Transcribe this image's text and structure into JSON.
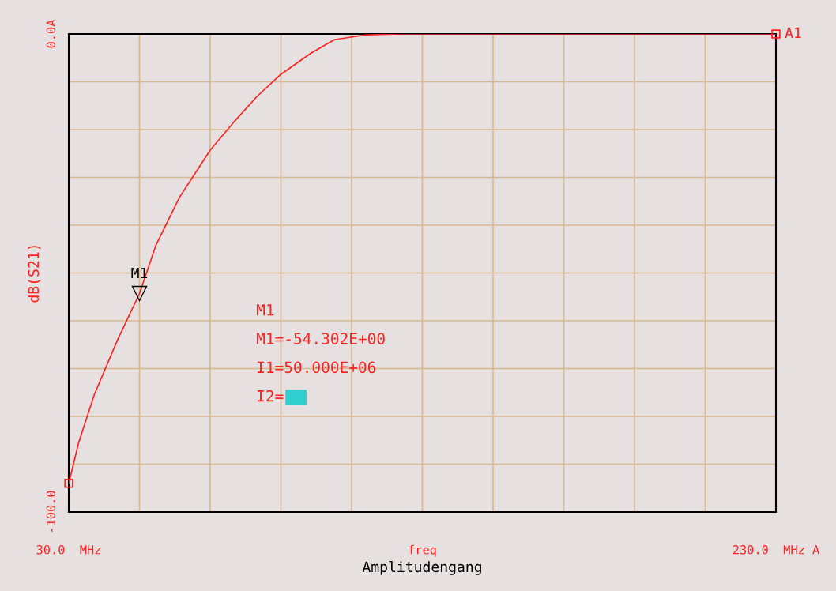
{
  "chart_data": {
    "type": "line",
    "xlabel": "Amplitudengang",
    "ylabel": "dB(S21)",
    "series": [
      {
        "color": "#ff2020",
        "x": [
          30,
          32.8,
          37.2,
          43.8,
          50,
          54.7,
          61.3,
          70,
          76.6,
          83.2,
          89.7,
          98.5,
          105.1,
          113.8,
          123.7,
          230
        ],
        "values": [
          -94,
          -85.5,
          -75.5,
          -64,
          -54.3,
          -44.1,
          -34.2,
          -24.3,
          -18.5,
          -13.1,
          -8.6,
          -4,
          -1.2,
          -0.2,
          0,
          0
        ]
      },
      {
        "type": "scatter",
        "color": "#ff2020",
        "marker": "square",
        "x": [
          30,
          230
        ],
        "values": [
          -94,
          0
        ]
      }
    ],
    "xlim": [
      30,
      230
    ],
    "ylim": [
      -100,
      0
    ],
    "xticks": [
      {
        "value": 30,
        "label": "30.0  MHz"
      },
      {
        "value": 50,
        "label": null
      },
      {
        "value": 70,
        "label": null
      },
      {
        "value": 90,
        "label": null
      },
      {
        "value": 110,
        "label": null
      },
      {
        "value": 130,
        "label": "freq"
      },
      {
        "value": 150,
        "label": null
      },
      {
        "value": 170,
        "label": null
      },
      {
        "value": 190,
        "label": null
      },
      {
        "value": 210,
        "label": null
      },
      {
        "value": 230,
        "label": "230.0  MHz A"
      }
    ],
    "yticks": [
      {
        "value": -100,
        "label": "-100.0"
      },
      {
        "value": -90,
        "label": null
      },
      {
        "value": -80,
        "label": null
      },
      {
        "value": -70,
        "label": null
      },
      {
        "value": -60,
        "label": null
      },
      {
        "value": -50,
        "label": null
      },
      {
        "value": -40,
        "label": null
      },
      {
        "value": -30,
        "label": null
      },
      {
        "value": -20,
        "label": null
      },
      {
        "value": -10,
        "label": null
      },
      {
        "value": 0,
        "label": "0.0A"
      }
    ],
    "grid": true,
    "annotations": [
      {
        "text": "M1",
        "x": 50,
        "y": -54.302
      },
      {
        "text": "A1",
        "x": 230,
        "y": 0
      },
      "M1",
      "M1=-54.302E+00",
      "I1=50.000E+06",
      "I2="
    ]
  }
}
